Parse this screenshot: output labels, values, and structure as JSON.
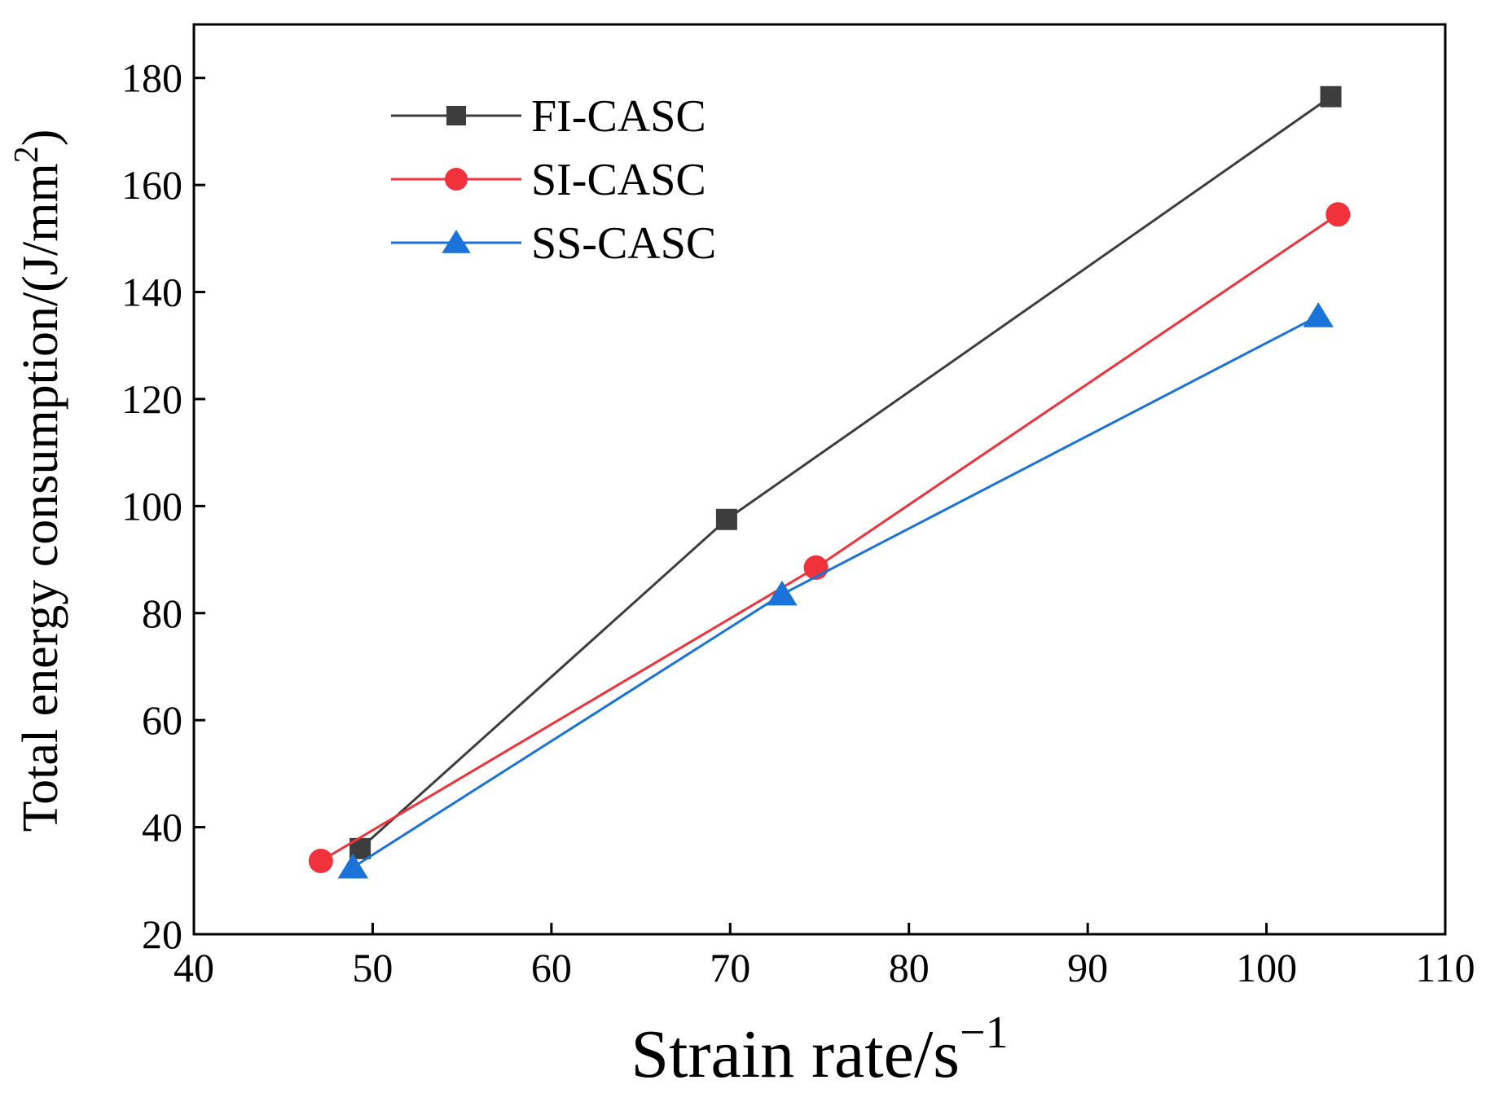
{
  "chart_data": {
    "type": "line",
    "title": "",
    "xlabel": "Strain rate/s",
    "xlabel_sup": "−1",
    "ylabel": "Total energy consumption/(J/mm",
    "ylabel_sup": "2",
    "ylabel_close": ")",
    "xlim": [
      40,
      110
    ],
    "ylim": [
      20,
      190
    ],
    "xticks": [
      40,
      50,
      60,
      70,
      80,
      90,
      100,
      110
    ],
    "yticks": [
      20,
      40,
      60,
      80,
      100,
      120,
      140,
      160,
      180
    ],
    "legend_position": "top-left",
    "series": [
      {
        "name": "FI-CASC",
        "color": "#3d3d3d",
        "marker": "square",
        "x": [
          49.3,
          69.8,
          103.6
        ],
        "y": [
          36,
          97.5,
          176.5
        ]
      },
      {
        "name": "SI-CASC",
        "color": "#f0323c",
        "marker": "circle",
        "x": [
          47.1,
          74.8,
          104
        ],
        "y": [
          33.7,
          88.5,
          154.5
        ]
      },
      {
        "name": "SS-CASC",
        "color": "#1a73d9",
        "marker": "triangle",
        "x": [
          48.9,
          72.9,
          102.9
        ],
        "y": [
          32.5,
          83.5,
          135.5
        ]
      }
    ]
  }
}
